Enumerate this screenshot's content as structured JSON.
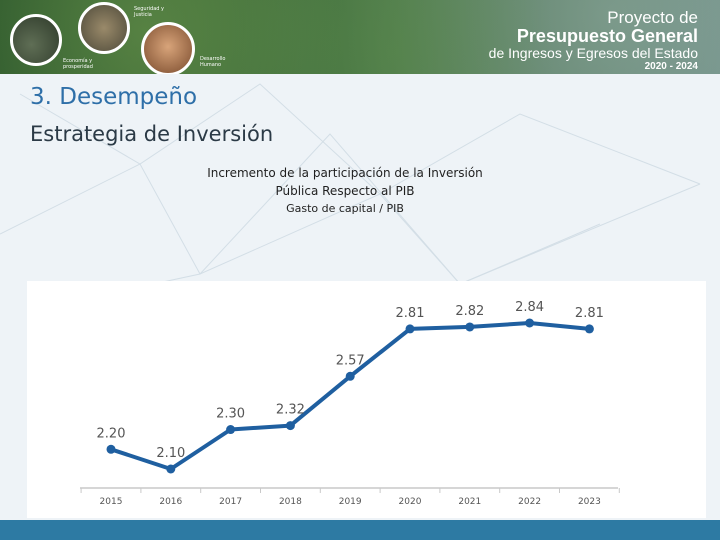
{
  "banner": {
    "circle_labels": [
      "Seguridad y Justicia",
      "Economía y prosperidad",
      "Desarrollo Humano"
    ],
    "brand_line1": "Proyecto de",
    "brand_line2": "Presupuesto General",
    "brand_line3": "de Ingresos y Egresos del Estado",
    "brand_line4": "2020 - 2024"
  },
  "section_title": "3. Desempeño",
  "subtitle": "Estrategia de Inversión",
  "chart_heading": {
    "line1": "Incremento de la participación de la Inversión",
    "line2": "Pública Respecto al PIB",
    "line3": "Gasto de capital / PIB"
  },
  "colors": {
    "accent": "#2e6fa8",
    "line": "#1f5fa0",
    "footer": "#2d7aa3"
  },
  "chart_data": {
    "type": "line",
    "categories": [
      "2015",
      "2016",
      "2017",
      "2018",
      "2019",
      "2020",
      "2021",
      "2022",
      "2023"
    ],
    "values": [
      2.2,
      2.1,
      2.3,
      2.32,
      2.57,
      2.81,
      2.82,
      2.84,
      2.81
    ],
    "labels": [
      "2.20",
      "2.10",
      "2.30",
      "2.32",
      "2.57",
      "2.81",
      "2.82",
      "2.84",
      "2.81"
    ],
    "title": "Incremento de la participación de la Inversión Pública Respecto al PIB",
    "subtitle": "Gasto de capital / PIB",
    "grid": false
  }
}
